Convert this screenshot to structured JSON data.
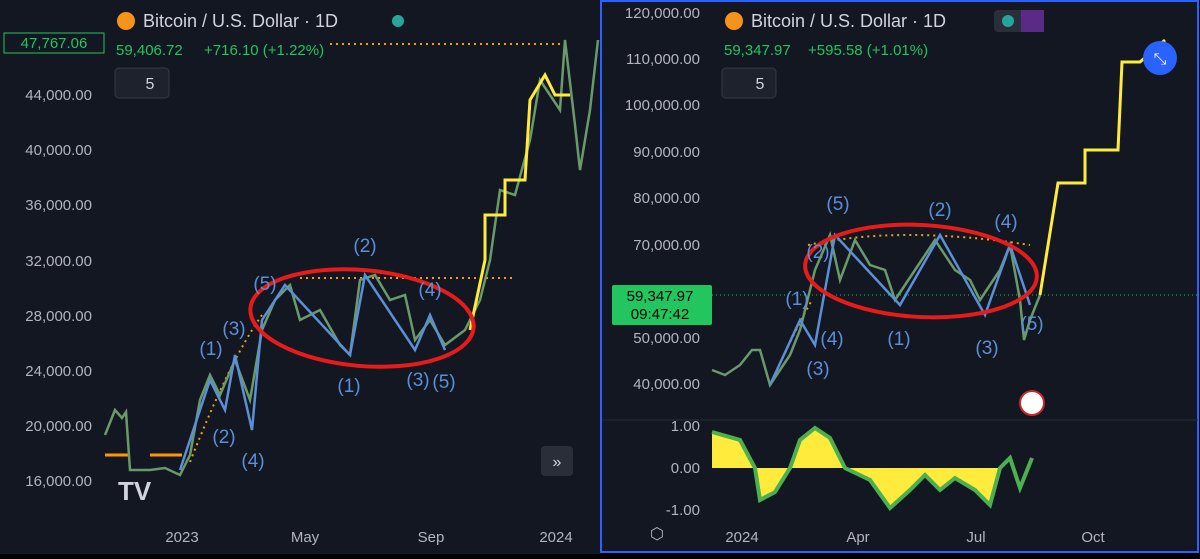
{
  "left": {
    "title": "Bitcoin / U.S. Dollar · 1D",
    "price": "59,406.72",
    "change": "+716.10 (+1.22%)",
    "price_tag": "47,767.06",
    "interval": "5",
    "y_labels": [
      "44,000.00",
      "40,000.00",
      "36,000.00",
      "32,000.00",
      "28,000.00",
      "24,000.00",
      "20,000.00",
      "16,000.00"
    ],
    "x_labels": [
      "2023",
      "May",
      "Sep",
      "2024"
    ],
    "waves": [
      "(5)",
      "(2)",
      "(4)",
      "(1)",
      "(3)",
      "(5)",
      "(1)",
      "(3)",
      "(2)",
      "(4)"
    ]
  },
  "right": {
    "title": "Bitcoin / U.S. Dollar · 1D",
    "price": "59,347.97",
    "change": "+595.58 (+1.01%)",
    "interval": "5",
    "y_labels": [
      "120,000.00",
      "110,000.00",
      "100,000.00",
      "90,000.00",
      "80,000.00",
      "70,000.00",
      "50,000.00",
      "40,000.00"
    ],
    "price_tag": "59,347.97",
    "countdown": "09:47:42",
    "osc_labels": [
      "1.00",
      "0.00",
      "-1.00"
    ],
    "x_labels": [
      "2024",
      "Apr",
      "Jul",
      "Oct"
    ],
    "waves": [
      "(5)",
      "(2)",
      "(4)",
      "(1)",
      "(3)",
      "(4)",
      "(2)",
      "(1)",
      "(3)",
      "(5)"
    ]
  }
}
